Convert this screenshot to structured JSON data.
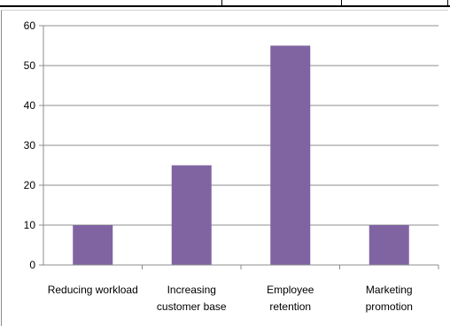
{
  "chart_data": {
    "type": "bar",
    "categories": [
      [
        "Reducing workload"
      ],
      [
        "Increasing",
        "customer base"
      ],
      [
        "Employee",
        "retention"
      ],
      [
        "Marketing",
        "promotion"
      ]
    ],
    "values": [
      10,
      25,
      55,
      10
    ],
    "yticks": [
      "0",
      "10",
      "20",
      "30",
      "40",
      "50",
      "60"
    ],
    "ylim": [
      0,
      60
    ],
    "grid": true,
    "bar_color": "#8064a2",
    "title": "",
    "xlabel": "",
    "ylabel": ""
  }
}
